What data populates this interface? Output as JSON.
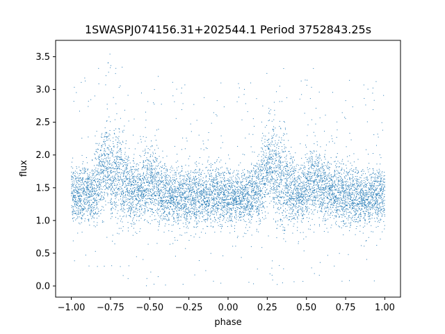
{
  "chart_data": {
    "type": "scatter",
    "title": "1SWASPJ074156.31+202544.1 Period 3752843.25s",
    "xlabel": "phase",
    "ylabel": "flux",
    "xlim": [
      -1.1,
      1.1
    ],
    "ylim": [
      -0.17,
      3.75
    ],
    "xticks": [
      -1.0,
      -0.75,
      -0.5,
      -0.25,
      0.0,
      0.25,
      0.5,
      0.75,
      1.0
    ],
    "xtick_labels": [
      "−1.00",
      "−0.75",
      "−0.50",
      "−0.25",
      "0.00",
      "0.25",
      "0.50",
      "0.75",
      "1.00"
    ],
    "yticks": [
      0.0,
      0.5,
      1.0,
      1.5,
      2.0,
      2.5,
      3.0,
      3.5
    ],
    "ytick_labels": [
      "0.0",
      "0.5",
      "1.0",
      "1.5",
      "2.0",
      "2.5",
      "3.0",
      "3.5"
    ],
    "grid": false,
    "marker_color": "#1f77b4",
    "series": [
      {
        "x": [
          -1.0,
          -0.98,
          -0.96,
          -0.94,
          -0.92,
          -0.9,
          -0.88,
          -0.86,
          -0.84,
          -0.82,
          -0.8,
          -0.78,
          -0.76,
          -0.74,
          -0.72,
          -0.7,
          -0.68,
          -0.66,
          -0.64,
          -0.62,
          -0.6,
          -0.58,
          -0.56,
          -0.54,
          -0.52,
          -0.5,
          -0.48,
          -0.46,
          -0.44,
          -0.42,
          -0.4,
          -0.38,
          -0.36,
          -0.34,
          -0.32,
          -0.3,
          -0.28,
          -0.26,
          -0.24,
          -0.22,
          -0.2,
          -0.18,
          -0.16,
          -0.14,
          -0.12,
          -0.1,
          -0.08,
          -0.06,
          -0.04,
          -0.02,
          0.0,
          0.02,
          0.04,
          0.06,
          0.08,
          0.1,
          0.12,
          0.14,
          0.16,
          0.18,
          0.2,
          0.22,
          0.24,
          0.26,
          0.28,
          0.3,
          0.32,
          0.34,
          0.36,
          0.38,
          0.4,
          0.42,
          0.44,
          0.46,
          0.48,
          0.5,
          0.52,
          0.54,
          0.56,
          0.58,
          0.6,
          0.62,
          0.64,
          0.66,
          0.68,
          0.7,
          0.72,
          0.74,
          0.76,
          0.78,
          0.8,
          0.82,
          0.84,
          0.86,
          0.88,
          0.9,
          0.92,
          0.94,
          0.96,
          0.98,
          1.0
        ],
        "y": [
          1.45,
          1.38,
          1.4,
          1.36,
          1.42,
          1.44,
          1.35,
          1.46,
          1.55,
          1.62,
          1.78,
          1.88,
          1.85,
          1.72,
          1.68,
          1.72,
          1.62,
          1.55,
          1.5,
          1.46,
          1.42,
          1.48,
          1.45,
          1.52,
          1.55,
          1.52,
          1.58,
          1.55,
          1.46,
          1.42,
          1.4,
          1.38,
          1.42,
          1.4,
          1.36,
          1.38,
          1.35,
          1.32,
          1.34,
          1.36,
          1.4,
          1.42,
          1.38,
          1.35,
          1.36,
          1.38,
          1.4,
          1.38,
          1.36,
          1.38,
          1.36,
          1.35,
          1.38,
          1.4,
          1.38,
          1.36,
          1.35,
          1.38,
          1.42,
          1.45,
          1.5,
          1.62,
          1.75,
          1.88,
          1.82,
          1.7,
          1.62,
          1.6,
          1.58,
          1.52,
          1.48,
          1.45,
          1.42,
          1.44,
          1.48,
          1.5,
          1.55,
          1.6,
          1.58,
          1.55,
          1.52,
          1.48,
          1.5,
          1.46,
          1.42,
          1.4,
          1.38,
          1.36,
          1.38,
          1.4,
          1.38,
          1.35,
          1.36,
          1.38,
          1.35,
          1.36,
          1.38,
          1.4,
          1.38,
          1.36,
          1.4
        ],
        "spread": [
          0.42,
          0.4,
          0.4,
          0.42,
          0.42,
          0.42,
          0.44,
          0.46,
          0.55,
          0.6,
          0.62,
          0.62,
          0.62,
          0.68,
          0.72,
          0.7,
          0.66,
          0.58,
          0.52,
          0.5,
          0.48,
          0.48,
          0.5,
          0.52,
          0.52,
          0.52,
          0.5,
          0.5,
          0.48,
          0.46,
          0.45,
          0.45,
          0.45,
          0.46,
          0.46,
          0.46,
          0.45,
          0.45,
          0.45,
          0.45,
          0.45,
          0.44,
          0.44,
          0.44,
          0.44,
          0.44,
          0.43,
          0.43,
          0.42,
          0.42,
          0.42,
          0.42,
          0.42,
          0.42,
          0.42,
          0.42,
          0.42,
          0.43,
          0.44,
          0.46,
          0.5,
          0.58,
          0.62,
          0.62,
          0.62,
          0.66,
          0.7,
          0.72,
          0.68,
          0.6,
          0.55,
          0.5,
          0.48,
          0.48,
          0.5,
          0.52,
          0.52,
          0.52,
          0.5,
          0.5,
          0.48,
          0.48,
          0.48,
          0.46,
          0.46,
          0.45,
          0.45,
          0.45,
          0.44,
          0.44,
          0.44,
          0.44,
          0.44,
          0.44,
          0.43,
          0.43,
          0.42,
          0.42,
          0.42,
          0.42,
          0.42
        ]
      }
    ]
  }
}
